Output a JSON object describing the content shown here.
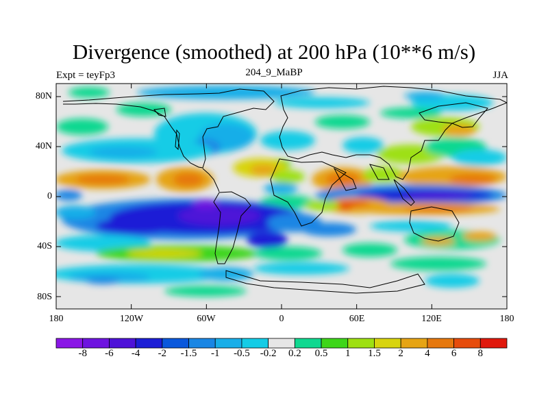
{
  "title": "Divergence (smoothed) at 200 hPa (10**6 m/s)",
  "subtitle_left": "Expt = teyFp3",
  "subtitle_center": "204_9_MaBP",
  "subtitle_right": "JJA",
  "lat_labels": [
    "80N",
    "40N",
    "0",
    "40S",
    "80S"
  ],
  "lon_labels": [
    "180",
    "120W",
    "60W",
    "0",
    "60E",
    "120E",
    "180"
  ],
  "colorbar": {
    "labels": [
      "-8",
      "-6",
      "-4",
      "-2",
      "-1.5",
      "-1",
      "-0.5",
      "-0.2",
      "0.2",
      "0.5",
      "1",
      "1.5",
      "2",
      "4",
      "6",
      "8"
    ],
    "colors": [
      "#8a16e6",
      "#6e14e0",
      "#4e12d8",
      "#1c1ed6",
      "#0a58dc",
      "#1a86e4",
      "#19aee8",
      "#14cce6",
      "#e6e6e6",
      "#10d890",
      "#3ed61a",
      "#9ee012",
      "#d8d40e",
      "#e6a414",
      "#e6780e",
      "#e64c0c",
      "#e0180c"
    ]
  }
}
